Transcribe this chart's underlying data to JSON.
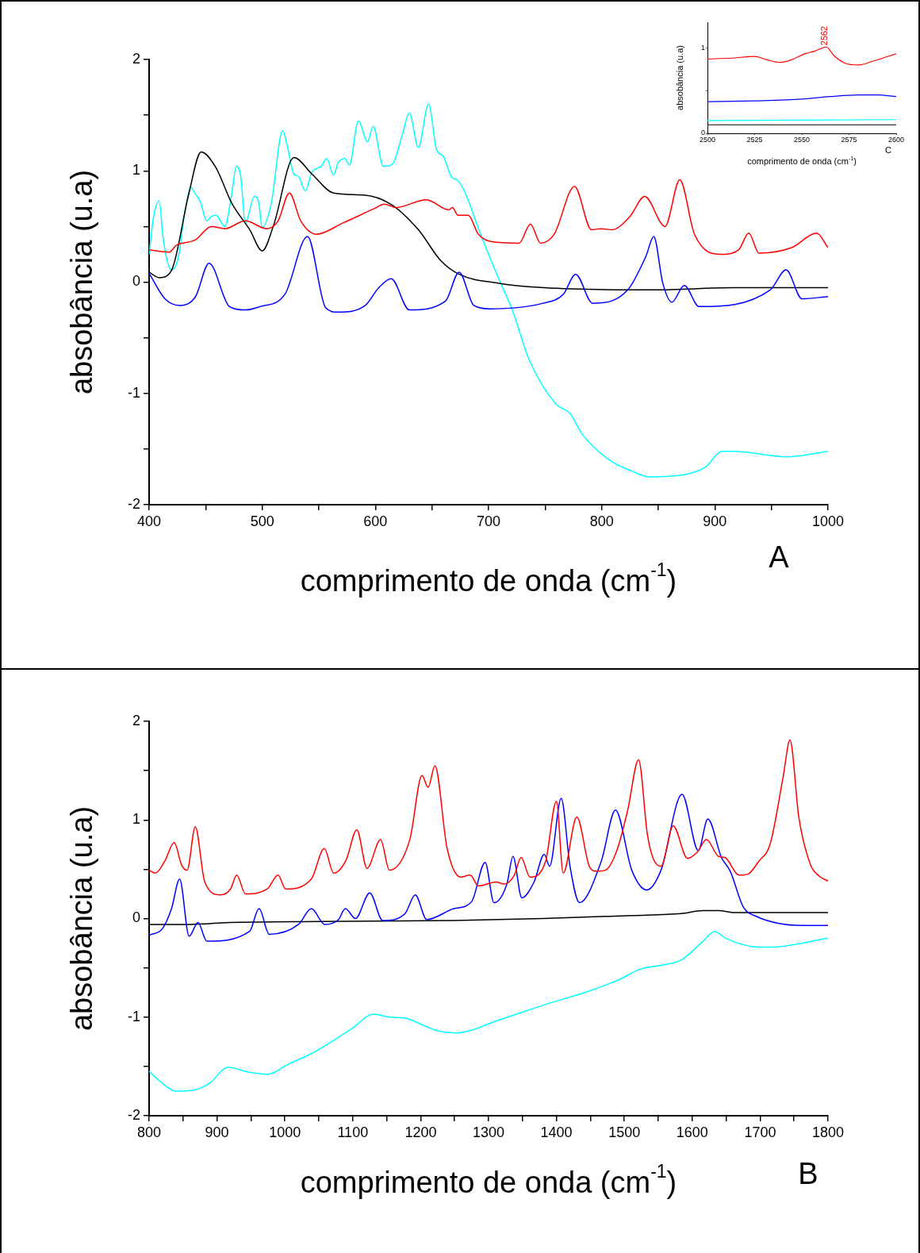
{
  "chart_data": [
    {
      "type": "line",
      "xlabel": "comprimento de onda (cm$^{-1}$)",
      "ylabel": "absobância (u.a)",
      "marker": "none",
      "line_style": "solid",
      "xlim": [
        400,
        1000
      ],
      "ylim": [
        -2,
        2
      ],
      "xticks": [
        400,
        {
          "value": 450,
          "label": null
        },
        500,
        {
          "value": 550,
          "label": null
        },
        600,
        {
          "value": 650,
          "label": null
        },
        700,
        {
          "value": 750,
          "label": null
        },
        800,
        {
          "value": 850,
          "label": null
        },
        900,
        {
          "value": 950,
          "label": null
        },
        1000
      ],
      "yticks": [
        -2,
        {
          "value": -1.5,
          "label": null
        },
        -1,
        {
          "value": -0.5,
          "label": null
        },
        0,
        {
          "value": 0.5,
          "label": null
        },
        1,
        {
          "value": 1.5,
          "label": null
        },
        2
      ],
      "annotations": [
        "A"
      ],
      "series": [
        {
          "color": "#ff0000",
          "x": [
            400,
            417.7,
            424,
            441,
            455,
            467,
            485,
            504,
            514,
            524,
            534,
            548,
            571,
            599,
            608,
            618,
            645,
            665,
            668,
            673,
            682,
            691,
            705,
            727,
            737,
            746,
            758,
            776,
            791,
            799,
            809,
            825,
            838,
            856,
            869,
            882,
            906,
            921,
            930,
            939,
            968,
            990,
            1000
          ],
          "values": [
            0.29,
            0.27,
            0.33,
            0.38,
            0.5,
            0.48,
            0.55,
            0.48,
            0.55,
            0.8,
            0.55,
            0.43,
            0.53,
            0.66,
            0.7,
            0.67,
            0.74,
            0.65,
            0.67,
            0.6,
            0.6,
            0.43,
            0.36,
            0.35,
            0.52,
            0.35,
            0.43,
            0.86,
            0.47,
            0.48,
            0.47,
            0.59,
            0.77,
            0.5,
            0.92,
            0.43,
            0.25,
            0.29,
            0.44,
            0.26,
            0.31,
            0.44,
            0.31
          ]
        },
        {
          "color": "#0000ff",
          "x": [
            400,
            414,
            427,
            441,
            453,
            471,
            485,
            498,
            520,
            540,
            556,
            567,
            591,
            603,
            614,
            630,
            662,
            674,
            687,
            701,
            748,
            766,
            777,
            792,
            823,
            839,
            846,
            854,
            862,
            873,
            886,
            949,
            963,
            977,
            1000
          ],
          "values": [
            0.08,
            -0.15,
            -0.21,
            -0.13,
            0.17,
            -0.22,
            -0.25,
            -0.22,
            -0.11,
            0.41,
            -0.23,
            -0.27,
            -0.21,
            -0.05,
            0.03,
            -0.25,
            -0.17,
            0.09,
            -0.21,
            -0.24,
            -0.19,
            -0.11,
            0.07,
            -0.19,
            -0.07,
            0.23,
            0.41,
            -0.01,
            -0.18,
            -0.03,
            -0.22,
            -0.07,
            0.11,
            -0.15,
            -0.13
          ]
        },
        {
          "color": "#000000",
          "x": [
            400,
            409,
            420,
            435,
            446,
            459,
            473,
            489,
            500,
            510,
            528,
            544,
            563,
            591,
            615,
            638,
            658,
            674,
            709,
            749,
            847,
            917,
            1000
          ],
          "values": [
            0.09,
            0.04,
            0.11,
            0.79,
            1.17,
            1.03,
            0.71,
            0.47,
            0.28,
            0.51,
            1.12,
            0.97,
            0.8,
            0.78,
            0.69,
            0.47,
            0.19,
            0.07,
            -0.01,
            -0.05,
            -0.07,
            -0.05,
            -0.05
          ]
        },
        {
          "color": "#00ffff",
          "x": [
            400,
            404,
            409,
            412,
            416,
            420,
            426,
            431,
            437,
            441,
            445,
            451,
            455,
            459,
            467,
            473,
            477,
            481,
            485,
            493,
            497,
            500,
            508,
            518,
            522,
            528,
            532,
            538,
            544,
            552,
            557,
            563,
            567,
            573,
            577,
            585,
            593,
            598,
            607,
            615,
            624,
            630,
            638,
            647,
            654,
            660,
            667,
            673,
            679,
            693,
            709,
            721,
            736,
            760,
            772,
            783,
            807,
            827,
            842,
            866,
            892,
            906,
            917,
            964,
            1000
          ],
          "values": [
            0.25,
            0.59,
            0.73,
            0.43,
            0.19,
            0.11,
            0.23,
            0.59,
            0.85,
            0.79,
            0.73,
            0.55,
            0.59,
            0.6,
            0.5,
            0.79,
            1.04,
            0.95,
            0.53,
            0.77,
            0.71,
            0.49,
            0.71,
            1.36,
            1.23,
            0.97,
            0.95,
            0.82,
            0.99,
            1.04,
            1.11,
            0.96,
            1.07,
            1.11,
            1.05,
            1.45,
            1.26,
            1.4,
            1.04,
            1.06,
            1.33,
            1.52,
            1.21,
            1.6,
            1.19,
            1.13,
            0.95,
            0.91,
            0.81,
            0.43,
            0.03,
            -0.25,
            -0.7,
            -1.1,
            -1.18,
            -1.37,
            -1.6,
            -1.7,
            -1.75,
            -1.74,
            -1.66,
            -1.52,
            -1.52,
            -1.57,
            -1.52
          ]
        }
      ]
    },
    {
      "type": "line",
      "xlabel": "comprimento de onda (cm$^{-1}$)",
      "ylabel": "absobância (u.a)",
      "marker": "none",
      "line_style": "solid",
      "xlim": [
        2500,
        2600
      ],
      "ylim": [
        0,
        1.3
      ],
      "xticks": [
        2500,
        2525,
        2550,
        2575,
        2600
      ],
      "yticks": [
        0,
        {
          "value": 0.5,
          "label": null
        },
        1
      ],
      "annotations": [
        {
          "text": "2562",
          "x": 2562,
          "y": 1.01
        },
        "C"
      ],
      "series": [
        {
          "color": "#ff0000",
          "x": [
            2500,
            2512.6,
            2525,
            2531.6,
            2538.4,
            2544.5,
            2551.4,
            2556.6,
            2563,
            2567,
            2573,
            2580,
            2588.4,
            2600
          ],
          "values": [
            0.87,
            0.88,
            0.9,
            0.86,
            0.83,
            0.86,
            0.93,
            0.96,
            1.01,
            0.91,
            0.82,
            0.8,
            0.85,
            0.93
          ]
        },
        {
          "color": "#0000ff",
          "x": [
            2500,
            2525,
            2550,
            2565,
            2580,
            2590,
            2600
          ],
          "values": [
            0.37,
            0.38,
            0.4,
            0.43,
            0.45,
            0.45,
            0.43
          ]
        },
        {
          "color": "#00ffff",
          "x": [
            2500,
            2600
          ],
          "values": [
            0.15,
            0.16
          ]
        },
        {
          "color": "#000000",
          "x": [
            2500,
            2600
          ],
          "values": [
            0.1,
            0.1
          ]
        }
      ]
    },
    {
      "type": "line",
      "xlabel": "comprimento de onda (cm$^{-1}$)",
      "ylabel": "absobância (u.a)",
      "marker": "none",
      "line_style": "solid",
      "xlim": [
        800,
        1800
      ],
      "ylim": [
        -2,
        2
      ],
      "xticks": [
        800,
        {
          "value": 850,
          "label": null
        },
        900,
        {
          "value": 950,
          "label": null
        },
        1000,
        {
          "value": 1050,
          "label": null
        },
        1100,
        {
          "value": 1150,
          "label": null
        },
        1200,
        {
          "value": 1250,
          "label": null
        },
        1300,
        {
          "value": 1350,
          "label": null
        },
        1400,
        {
          "value": 1450,
          "label": null
        },
        1500,
        {
          "value": 1550,
          "label": null
        },
        1600,
        {
          "value": 1650,
          "label": null
        },
        1700,
        {
          "value": 1750,
          "label": null
        },
        1800
      ],
      "yticks": [
        -2,
        {
          "value": -1.5,
          "label": null
        },
        -1,
        {
          "value": -0.5,
          "label": null
        },
        0,
        {
          "value": 0.5,
          "label": null
        },
        1,
        {
          "value": 1.5,
          "label": null
        },
        2
      ],
      "annotations": [
        "B"
      ],
      "series": [
        {
          "color": "#ff0000",
          "x": [
            800,
            809,
            823,
            837,
            848,
            856,
            868,
            882,
            905,
            920,
            929,
            942,
            974,
            990,
            1001,
            1039,
            1058,
            1072,
            1090,
            1106,
            1121,
            1141,
            1154,
            1184,
            1202,
            1211,
            1221,
            1239,
            1259,
            1273,
            1285,
            1311,
            1323,
            1338,
            1348,
            1361,
            1384,
            1400,
            1410,
            1430,
            1449,
            1459,
            1472,
            1489,
            1505,
            1521,
            1534,
            1543,
            1554,
            1572,
            1593,
            1607,
            1621,
            1639,
            1648,
            1669,
            1682,
            1698,
            1715,
            1734,
            1744,
            1757,
            1774,
            1787,
            1800
          ],
          "values": [
            0.49,
            0.46,
            0.58,
            0.77,
            0.54,
            0.49,
            0.93,
            0.37,
            0.24,
            0.3,
            0.44,
            0.25,
            0.3,
            0.44,
            0.3,
            0.4,
            0.71,
            0.46,
            0.59,
            0.9,
            0.51,
            0.8,
            0.49,
            0.8,
            1.45,
            1.33,
            1.55,
            0.71,
            0.42,
            0.44,
            0.33,
            0.37,
            0.35,
            0.44,
            0.62,
            0.42,
            0.58,
            1.19,
            0.46,
            1.03,
            0.52,
            0.48,
            0.49,
            0.69,
            1.1,
            1.61,
            0.85,
            0.6,
            0.53,
            0.94,
            0.61,
            0.67,
            0.8,
            0.63,
            0.62,
            0.44,
            0.45,
            0.58,
            0.76,
            1.44,
            1.81,
            1.03,
            0.55,
            0.43,
            0.38
          ]
        },
        {
          "color": "#0000ff",
          "x": [
            800,
            820,
            833,
            845,
            859,
            872,
            885,
            948,
            962,
            977,
            1020,
            1039,
            1059,
            1079,
            1089,
            1104,
            1125,
            1144,
            1177,
            1192,
            1209,
            1249,
            1275,
            1295,
            1308,
            1327,
            1336,
            1349,
            1367,
            1382,
            1390,
            1407,
            1420,
            1434,
            1466,
            1487,
            1511,
            1533,
            1554,
            1585,
            1609,
            1623,
            1643,
            1656,
            1675,
            1695,
            1728,
            1761,
            1800
          ],
          "values": [
            -0.17,
            -0.1,
            0.1,
            0.4,
            -0.18,
            -0.04,
            -0.23,
            -0.13,
            0.1,
            -0.16,
            -0.06,
            0.1,
            -0.06,
            -0.01,
            0.1,
            0,
            0.26,
            -0.02,
            0.05,
            0.24,
            -0.01,
            0.1,
            0.17,
            0.57,
            0.16,
            0.35,
            0.63,
            0.21,
            0.37,
            0.65,
            0.53,
            1.22,
            0.53,
            0.16,
            0.58,
            1.1,
            0.49,
            0.29,
            0.49,
            1.26,
            0.69,
            1.01,
            0.62,
            0.48,
            0.12,
            0.02,
            -0.05,
            -0.07,
            -0.07
          ]
        },
        {
          "color": "#000000",
          "x": [
            800,
            856,
            918,
            1052,
            1249,
            1380,
            1511,
            1584,
            1616,
            1639,
            1662,
            1800
          ],
          "values": [
            -0.06,
            -0.06,
            -0.04,
            -0.03,
            -0.02,
            0,
            0.03,
            0.05,
            0.08,
            0.08,
            0.06,
            0.06
          ]
        },
        {
          "color": "#00ffff",
          "x": [
            800,
            816,
            839,
            866,
            889,
            916,
            948,
            974,
            1007,
            1039,
            1098,
            1131,
            1154,
            1177,
            1210,
            1226,
            1252,
            1315,
            1380,
            1446,
            1489,
            1525,
            1557,
            1584,
            1616,
            1633,
            1649,
            1698,
            1715,
            1800
          ],
          "values": [
            -1.55,
            -1.65,
            -1.75,
            -1.74,
            -1.67,
            -1.51,
            -1.56,
            -1.58,
            -1.47,
            -1.37,
            -1.12,
            -0.97,
            -1,
            -1.01,
            -1.1,
            -1.14,
            -1.16,
            -1.03,
            -0.88,
            -0.74,
            -0.63,
            -0.51,
            -0.47,
            -0.42,
            -0.23,
            -0.13,
            -0.2,
            -0.29,
            -0.29,
            -0.2
          ]
        }
      ]
    }
  ]
}
